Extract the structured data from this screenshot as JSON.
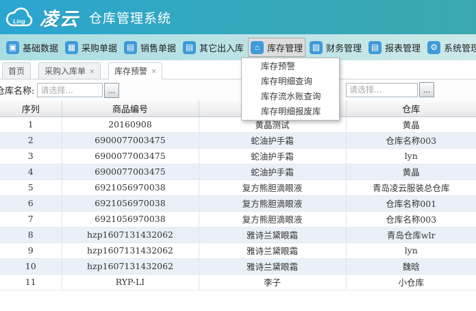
{
  "app": {
    "logo_small": "Ling",
    "brand": "凌云",
    "title": "仓库管理系统"
  },
  "menu": {
    "items": [
      {
        "label": "基础数据",
        "icon": "cube",
        "selected": false
      },
      {
        "label": "采购单据",
        "icon": "basket",
        "selected": false
      },
      {
        "label": "销售单据",
        "icon": "calendar",
        "selected": false
      },
      {
        "label": "其它出入库",
        "icon": "calendar",
        "selected": false
      },
      {
        "label": "库存管理",
        "icon": "home",
        "selected": true
      },
      {
        "label": "财务管理",
        "icon": "wallet",
        "selected": false
      },
      {
        "label": "报表管理",
        "icon": "calendar",
        "selected": false
      },
      {
        "label": "系统管理",
        "icon": "gear",
        "selected": false
      }
    ]
  },
  "dropdown": {
    "items": [
      "库存预警",
      "库存明细查询",
      "库存流水账查询",
      "库存明细报废库"
    ]
  },
  "tabs": {
    "close_glyph": "×",
    "items": [
      {
        "label": "首页",
        "closable": false,
        "active": false
      },
      {
        "label": "采购入库单",
        "closable": true,
        "active": false
      },
      {
        "label": "库存预警",
        "closable": true,
        "active": true
      }
    ]
  },
  "filters": {
    "warehouse_label": "仓库名称:",
    "first_placeholder": "请选择...",
    "second_placeholder": "请选择...",
    "picker_button": "..."
  },
  "table": {
    "columns": [
      "序列",
      "商品编号",
      "",
      "仓库"
    ],
    "rows": [
      [
        "1",
        "20160908",
        "黄晶测试",
        "黄晶"
      ],
      [
        "2",
        "6900077003475",
        "蛇油护手霜",
        "仓库名称003"
      ],
      [
        "3",
        "6900077003475",
        "蛇油护手霜",
        "lyn"
      ],
      [
        "4",
        "6900077003475",
        "蛇油护手霜",
        "黄晶"
      ],
      [
        "5",
        "6921056970038",
        "复方熊胆滴眼液",
        "青岛凌云服装总仓库"
      ],
      [
        "6",
        "6921056970038",
        "复方熊胆滴眼液",
        "仓库名称001"
      ],
      [
        "7",
        "6921056970038",
        "复方熊胆滴眼液",
        "仓库名称003"
      ],
      [
        "8",
        "hzp1607131432062",
        "雅诗兰黛眼霜",
        "青岛仓库wlr"
      ],
      [
        "9",
        "hzp1607131432062",
        "雅诗兰黛眼霜",
        "lyn"
      ],
      [
        "10",
        "hzp1607131432062",
        "雅诗兰黛眼霜",
        "魏晗"
      ],
      [
        "11",
        "RYP-LI",
        "李子",
        "小仓库"
      ]
    ]
  },
  "colors": {
    "banner_left": "#2ba5d2",
    "banner_right": "#3aa9af",
    "menubar_left": "#a9dde2",
    "menubar_right": "#cde9e9",
    "icon_blue": "#3f9bd8",
    "row_alt": "#eaf0f7"
  }
}
